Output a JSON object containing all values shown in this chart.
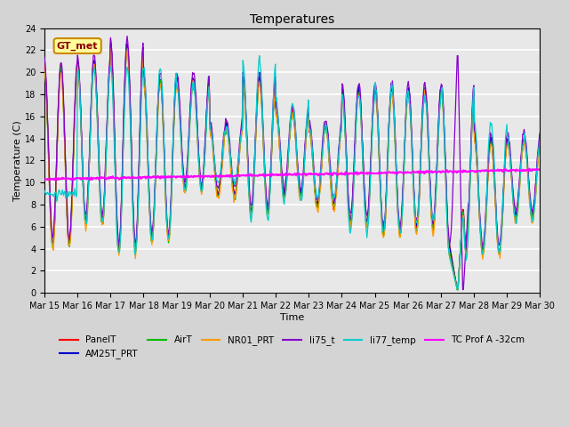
{
  "title": "Temperatures",
  "xlabel": "Time",
  "ylabel": "Temperature (C)",
  "ylim": [
    0,
    24
  ],
  "yticks": [
    0,
    2,
    4,
    6,
    8,
    10,
    12,
    14,
    16,
    18,
    20,
    22,
    24
  ],
  "fig_bg": "#d4d4d4",
  "plot_bg": "#e8e8e8",
  "grid_color": "white",
  "series_colors": {
    "PanelT": "#ff0000",
    "AM25T_PRT": "#0000cc",
    "AirT": "#00bb00",
    "NR01_PRT": "#ff9900",
    "li75_t": "#8800cc",
    "li77_temp": "#00cccc",
    "TC Prof A -32cm": "#ff00ff"
  },
  "x_tick_labels": [
    "Mar 15",
    "Mar 16",
    "Mar 17",
    "Mar 18",
    "Mar 19",
    "Mar 20",
    "Mar 21",
    "Mar 22",
    "Mar 23",
    "Mar 24",
    "Mar 25",
    "Mar 26",
    "Mar 27",
    "Mar 28",
    "Mar 29",
    "Mar 30"
  ],
  "annotation_text": "GT_met",
  "annotation_bg": "#ffff99",
  "annotation_border": "#cc8800"
}
